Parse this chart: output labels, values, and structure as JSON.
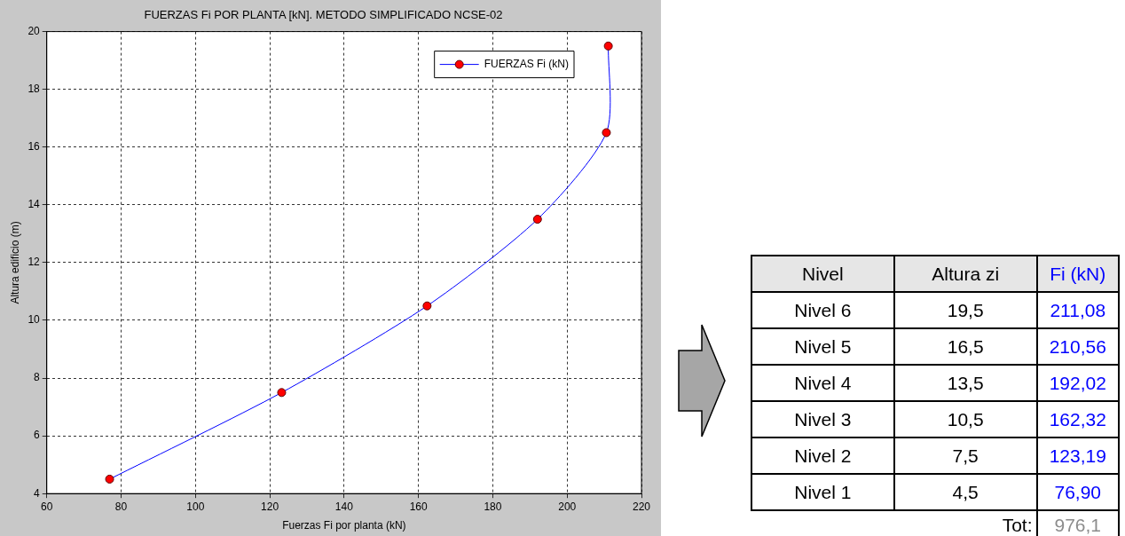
{
  "chart_data": [
    {
      "type": "line",
      "title": "FUERZAS Fi POR PLANTA [kN]. METODO SIMPLIFICADO NCSE-02",
      "xlabel": "Fuerzas Fi por planta (kN)",
      "ylabel": "Altura edificio (m)",
      "xlim": [
        60,
        220
      ],
      "xticks": [
        60,
        80,
        100,
        120,
        140,
        160,
        180,
        200,
        220
      ],
      "ylim": [
        4,
        20
      ],
      "yticks": [
        4,
        6,
        8,
        10,
        12,
        14,
        16,
        18,
        20
      ],
      "grid": true,
      "legend": "top right",
      "marker": "circle",
      "line_style": "solid",
      "series": [
        {
          "name": "FUERZAS Fi (kN)",
          "color": "#0000ff",
          "colors": [
            "#ff0000",
            "#ff0000",
            "#ff0000",
            "#ff0000",
            "#ff0000",
            "#ff0000"
          ],
          "x": [
            76.9,
            123.19,
            162.32,
            192.02,
            210.56,
            211.08
          ],
          "values": [
            4.5,
            7.5,
            10.5,
            13.5,
            16.5,
            19.5
          ]
        }
      ]
    },
    {
      "type": "heatmap",
      "ylabel": "Nivel",
      "categories": [
        "Altura zi",
        "Fi (kN)"
      ],
      "y_categories": [
        "Nivel 6",
        "Nivel 5",
        "Nivel 4",
        "Nivel 3",
        "Nivel 2",
        "Nivel 1"
      ],
      "cells": [
        [
          19.5,
          211.08
        ],
        [
          16.5,
          210.56
        ],
        [
          13.5,
          192.02
        ],
        [
          10.5,
          162.32
        ],
        [
          7.5,
          123.19
        ],
        [
          4.5,
          76.9
        ]
      ],
      "cell_labels": [
        [
          "19,5",
          "211,08"
        ],
        [
          "16,5",
          "210,56"
        ],
        [
          "13,5",
          "192,02"
        ],
        [
          "10,5",
          "162,32"
        ],
        [
          "7,5",
          "123,19"
        ],
        [
          "4,5",
          "76,90"
        ]
      ],
      "colors": [
        "#000000",
        "#0000ff"
      ],
      "annotations": [
        "Tot:",
        "976,1"
      ]
    }
  ]
}
